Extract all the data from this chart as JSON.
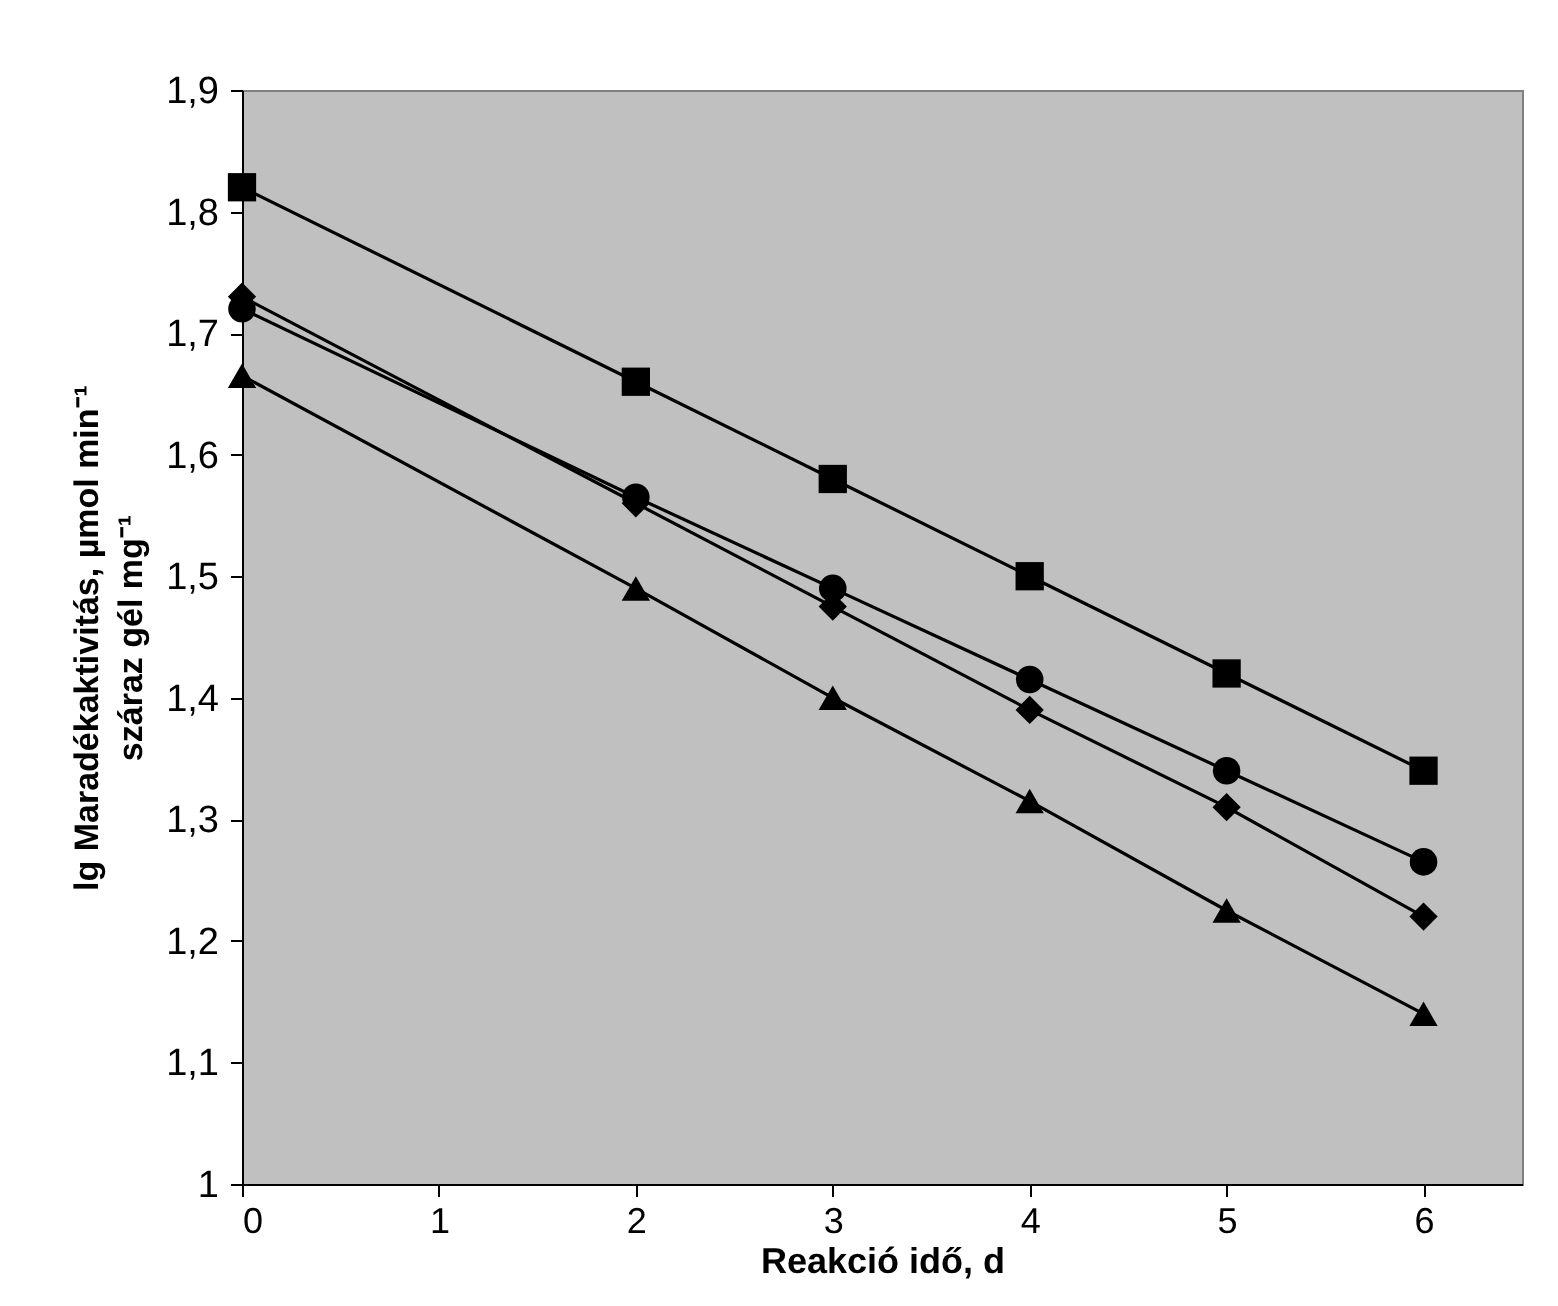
{
  "chart_data": {
    "type": "line",
    "xlabel": "Reakció idő, d",
    "ylabel": "lg Maradékaktivitás, µmol min⁻¹ száraz gél mg⁻¹",
    "x": [
      0,
      2,
      3,
      4,
      5,
      6
    ],
    "series": [
      {
        "color": "#000000",
        "marker": "square",
        "values": [
          1.82,
          1.66,
          1.58,
          1.5,
          1.42,
          1.34
        ]
      },
      {
        "color": "#000000",
        "marker": "circle",
        "values": [
          1.72,
          1.565,
          1.49,
          1.415,
          1.34,
          1.265
        ]
      },
      {
        "color": "#000000",
        "marker": "diamond",
        "values": [
          1.73,
          1.56,
          1.475,
          1.39,
          1.31,
          1.22
        ]
      },
      {
        "color": "#000000",
        "marker": "triangle",
        "values": [
          1.665,
          1.49,
          1.4,
          1.315,
          1.225,
          1.14
        ]
      }
    ],
    "xlim": [
      0,
      6.5
    ],
    "xticks": [
      0,
      1,
      2,
      3,
      4,
      5,
      6
    ],
    "ylim": [
      1,
      1.9
    ],
    "yticks": [
      1,
      {
        "value": 1.1,
        "label": "1,1"
      },
      {
        "value": 1.2,
        "label": "1,2"
      },
      {
        "value": 1.3,
        "label": "1,3"
      },
      {
        "value": 1.4,
        "label": "1,4"
      },
      {
        "value": 1.5,
        "label": "1,5"
      },
      {
        "value": 1.6,
        "label": "1,6"
      },
      {
        "value": 1.7,
        "label": "1,7"
      },
      {
        "value": 1.8,
        "label": "1,8"
      },
      {
        "value": 1.9,
        "label": "1,9"
      }
    ],
    "grid": false,
    "line_style": "solid"
  }
}
